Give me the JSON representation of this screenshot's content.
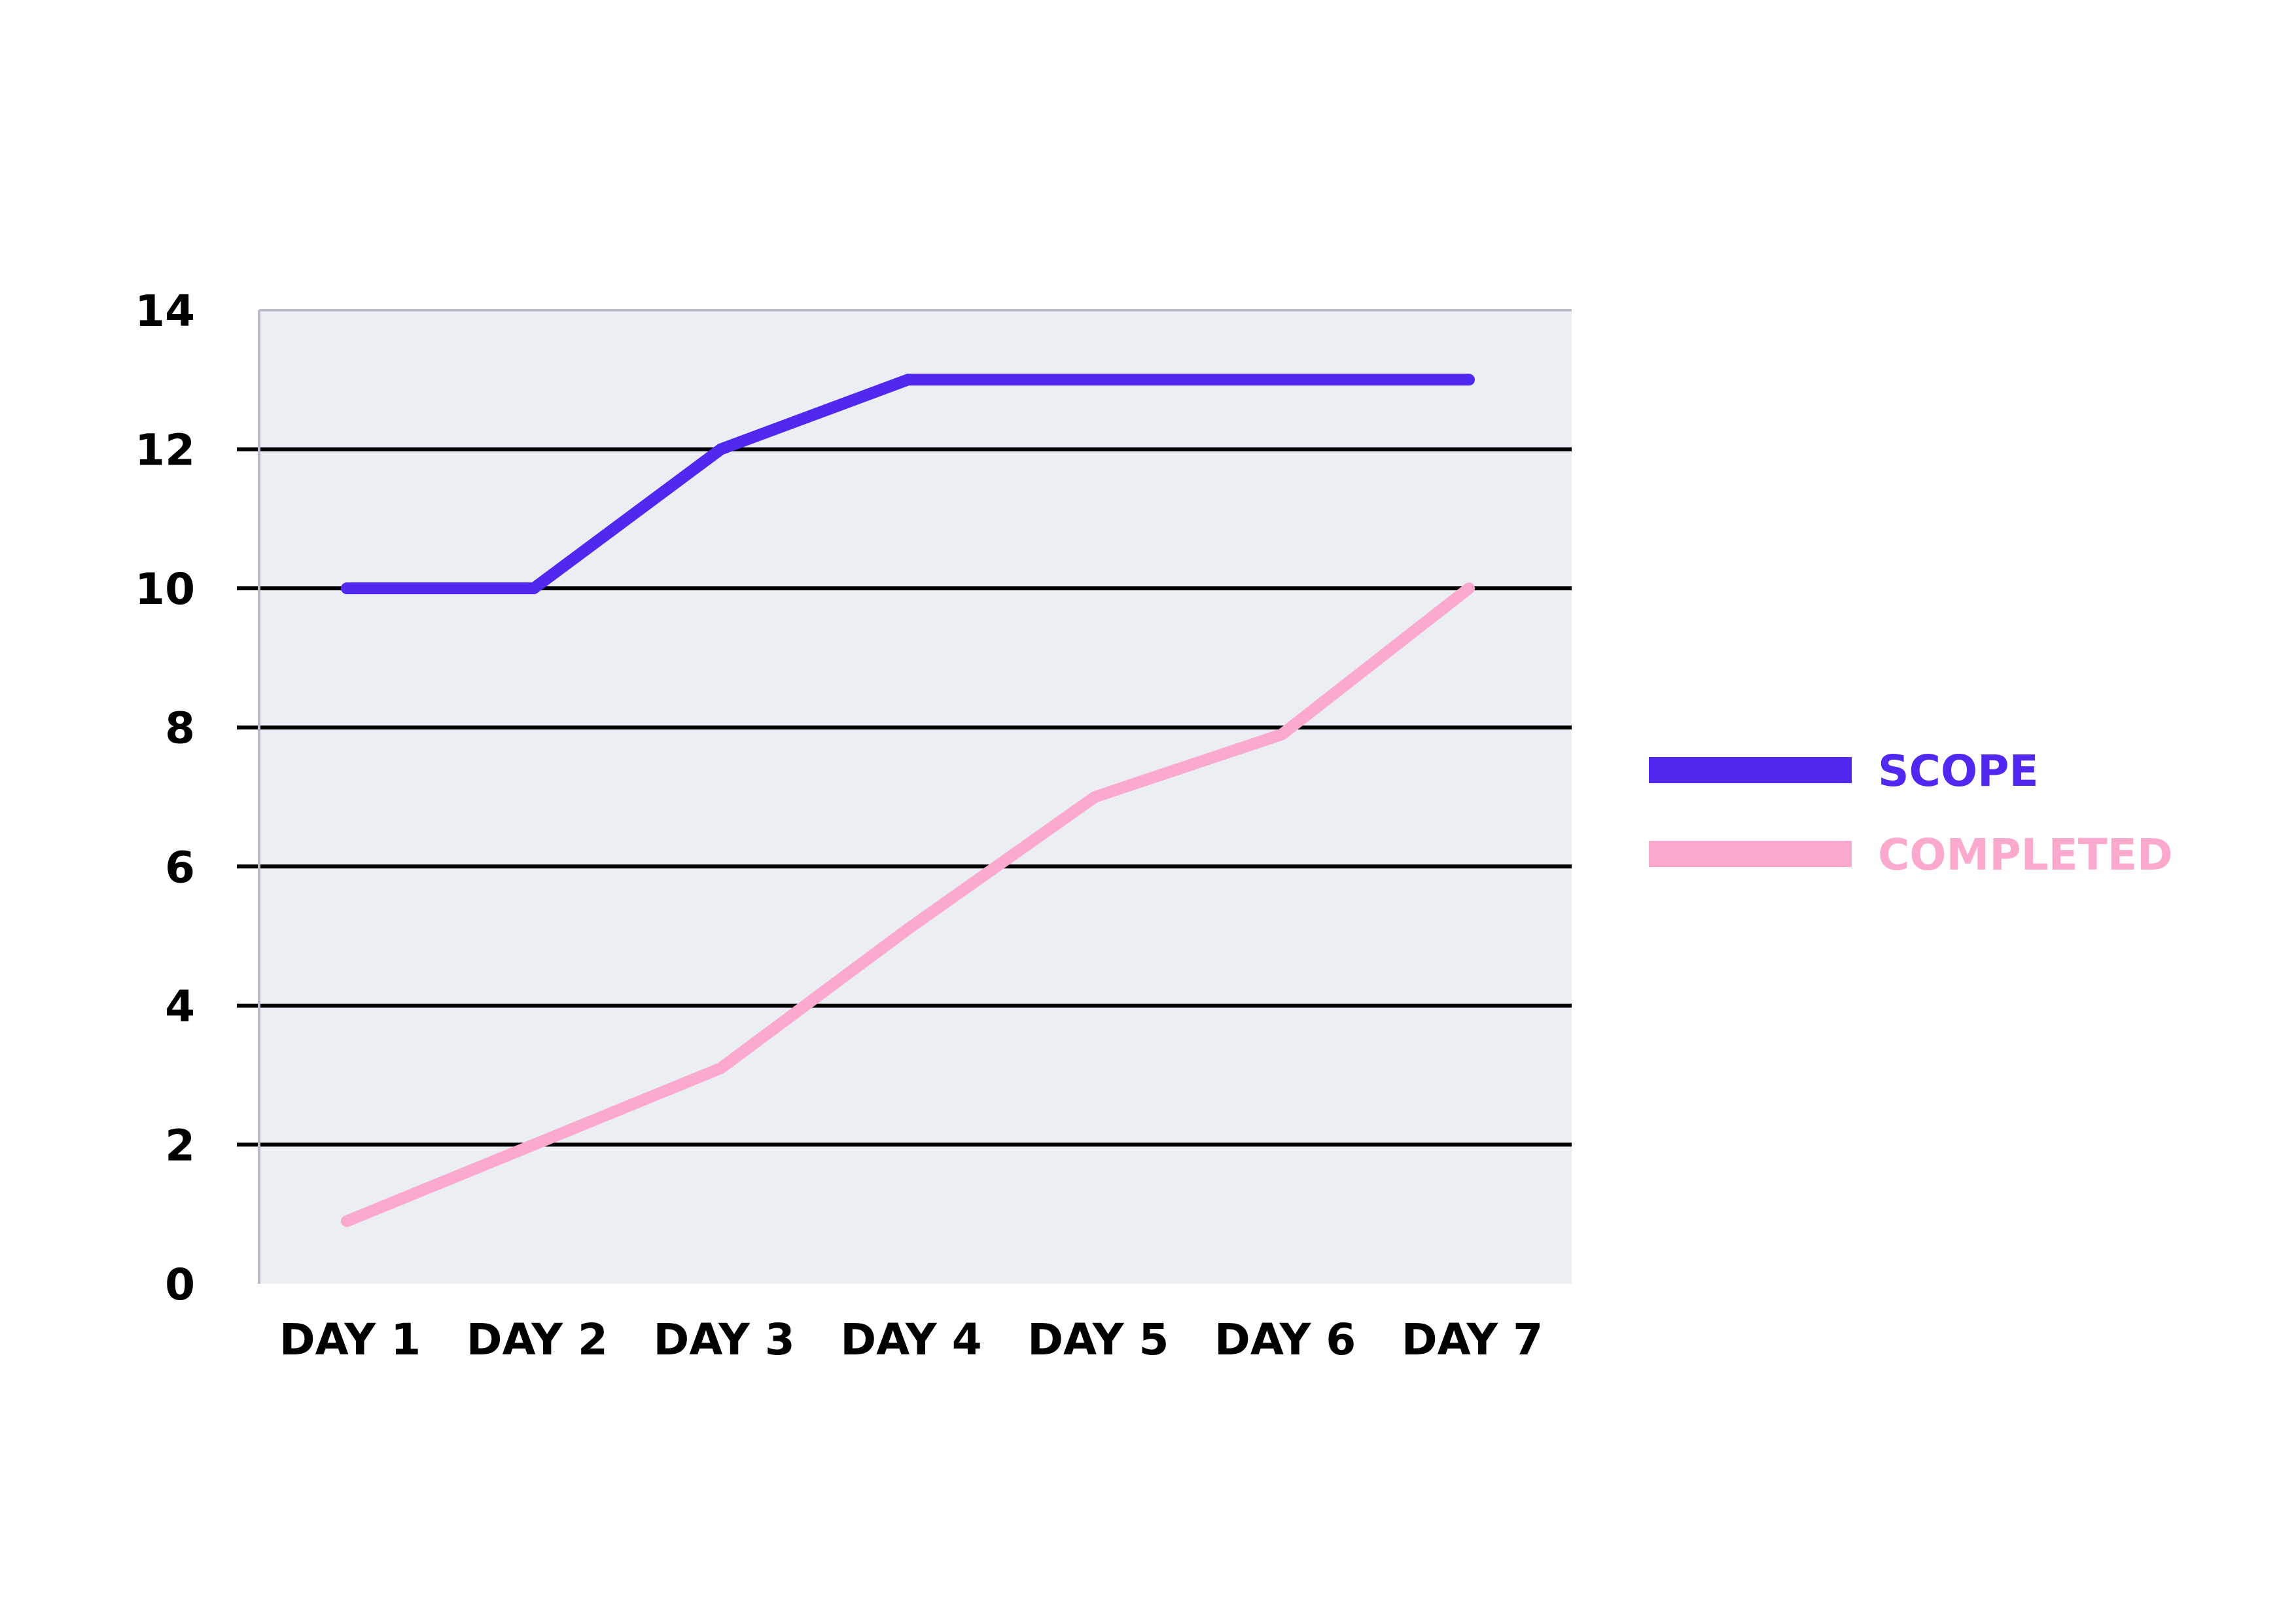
{
  "chart_data": {
    "type": "line",
    "title": "",
    "xlabel": "",
    "ylabel": "",
    "categories": [
      "DAY 1",
      "DAY 2",
      "DAY 3",
      "DAY 4",
      "DAY 5",
      "DAY 6",
      "DAY 7"
    ],
    "yticks": [
      0,
      2,
      4,
      6,
      8,
      10,
      12,
      14
    ],
    "ylim": [
      0,
      14
    ],
    "grid": true,
    "legend": "right",
    "plot_background": "#ebeef3",
    "series": [
      {
        "name": "SCOPE",
        "color": "#5128f0",
        "values": [
          10,
          10,
          12,
          13,
          13,
          13,
          13
        ]
      },
      {
        "name": "COMPLETED",
        "color": "#fba9cc",
        "values": [
          0.9,
          2,
          3.1,
          5.1,
          7,
          7.9,
          10
        ]
      }
    ]
  }
}
